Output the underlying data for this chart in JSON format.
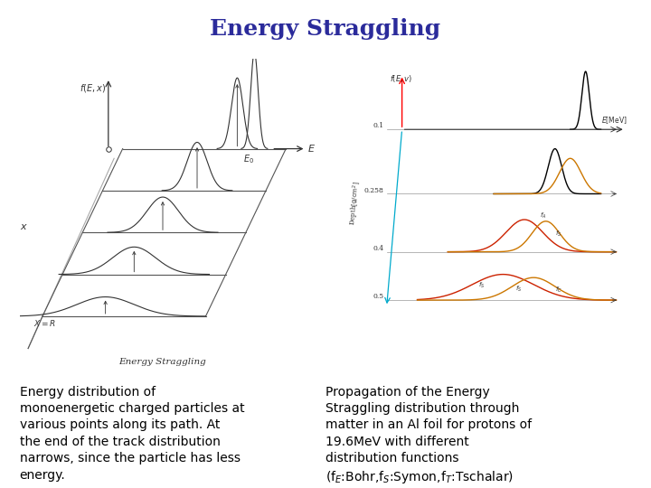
{
  "title": "Energy Straggling",
  "title_color": "#2b2b9b",
  "title_fontsize": 18,
  "title_font": "serif",
  "bg_color": "#ffffff",
  "left_text": "Energy distribution of\nmonoenergetic charged particles at\nvarious points along its path. At\nthe end of the track distribution\nnarrows, since the particle has less\nenergy.",
  "right_text_lines": [
    "Propagation of the Energy",
    "Straggling distribution through",
    "matter in an Al foil for protons of",
    "19.6MeV with different",
    "distribution functions",
    "(f_E:Bohr,f_S:Symon,f_T:Tschalar)"
  ],
  "text_fontsize": 10,
  "text_font": "sans-serif",
  "gray": "#555555",
  "dark": "#333333"
}
